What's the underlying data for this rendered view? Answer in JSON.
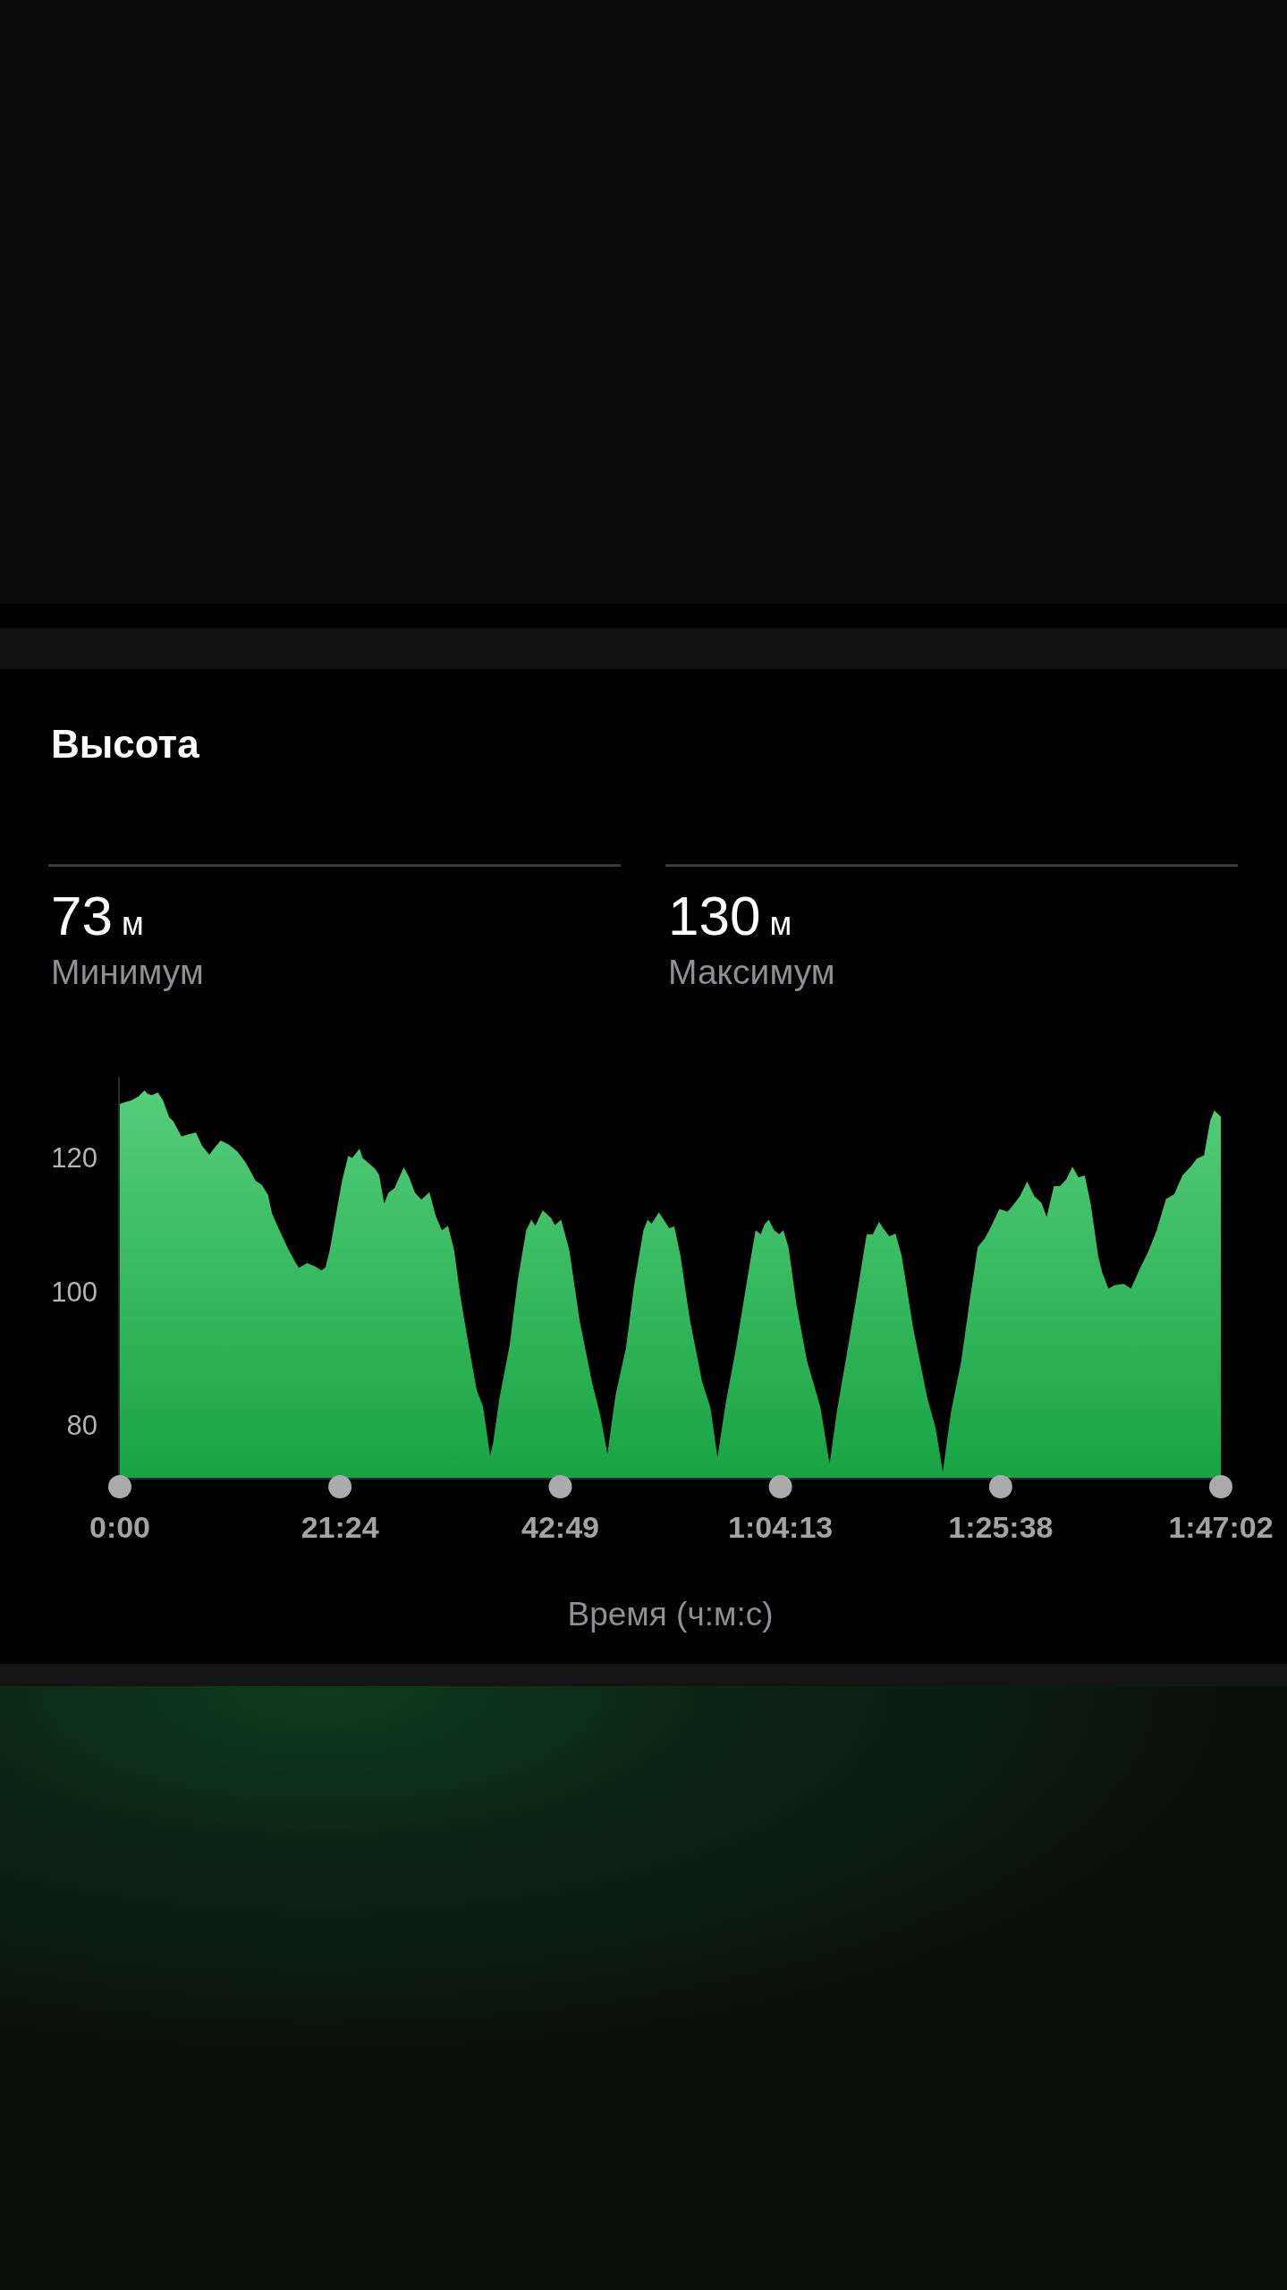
{
  "chart_data": {
    "type": "area",
    "title": "Высота",
    "xlabel": "Время (ч:м:с)",
    "annotations": [
      "73 м",
      "Минимум",
      "130 м",
      "Максимум"
    ],
    "xlim": [
      0,
      107.03
    ],
    "ylim": [
      72,
      132
    ],
    "xticks": [
      {
        "value": 0,
        "label": "0:00"
      },
      {
        "value": 21.4,
        "label": "21:24"
      },
      {
        "value": 42.82,
        "label": "42:49"
      },
      {
        "value": 64.22,
        "label": "1:04:13"
      },
      {
        "value": 85.63,
        "label": "1:25:38"
      },
      {
        "value": 107.03,
        "label": "1:47:02"
      }
    ],
    "yticks": [
      80,
      100,
      120
    ],
    "grid": false,
    "series": [
      {
        "color": "#36b95f",
        "x": [
          0,
          0.6,
          1.1,
          1.8,
          2.4,
          2.7,
          3.1,
          3.7,
          4.2,
          4.8,
          5.2,
          6.0,
          6.6,
          7.4,
          8.0,
          8.7,
          9.2,
          9.8,
          10.6,
          11.4,
          12.2,
          12.6,
          13.2,
          13.8,
          14.4,
          14.8,
          15.6,
          16.4,
          17.0,
          17.4,
          18.2,
          19.0,
          19.6,
          20.0,
          20.4,
          21.0,
          21.6,
          22.2,
          22.6,
          23.0,
          23.3,
          23.6,
          24.2,
          24.8,
          25.2,
          25.7,
          26.1,
          26.7,
          27.1,
          27.6,
          28.1,
          28.7,
          29.3,
          30.1,
          30.7,
          31.3,
          31.9,
          32.5,
          33.1,
          33.9,
          34.7,
          35.3,
          36.0,
          36.3,
          36.9,
          37.9,
          38.7,
          39.5,
          40.0,
          40.4,
          41.1,
          41.9,
          42.3,
          42.9,
          43.7,
          44.7,
          45.9,
          46.7,
          47.4,
          48.2,
          49.2,
          50.0,
          50.9,
          51.3,
          51.7,
          52.4,
          53.0,
          53.4,
          53.9,
          54.5,
          55.4,
          56.6,
          57.4,
          58.1,
          58.9,
          59.9,
          61.1,
          61.8,
          62.3,
          62.7,
          63.1,
          63.6,
          64.1,
          64.5,
          65.0,
          65.8,
          66.8,
          68.1,
          69.0,
          69.7,
          70.7,
          71.8,
          72.6,
          73.2,
          73.8,
          74.2,
          74.8,
          75.4,
          76.0,
          77.1,
          78.5,
          79.3,
          80.0,
          80.8,
          81.8,
          82.6,
          83.4,
          84.1,
          84.7,
          85.5,
          86.3,
          86.7,
          87.5,
          88.2,
          88.9,
          89.6,
          90.1,
          90.8,
          91.4,
          92.0,
          92.6,
          93.2,
          93.8,
          94.4,
          95.1,
          95.5,
          96.1,
          96.7,
          97.6,
          98.3,
          99.2,
          100.0,
          100.8,
          101.7,
          102.5,
          103.3,
          104.1,
          104.7,
          105.4,
          106.0,
          106.4,
          107.03
        ],
        "values": [
          128.0,
          128.3,
          128.5,
          129.1,
          130.0,
          129.5,
          129.3,
          129.7,
          128.5,
          126.0,
          125.4,
          123.1,
          123.4,
          123.7,
          121.7,
          120.4,
          121.4,
          122.5,
          121.9,
          120.9,
          119.3,
          118.2,
          116.5,
          115.9,
          114.4,
          111.6,
          108.8,
          106.2,
          104.5,
          103.5,
          104.2,
          103.7,
          103.1,
          103.6,
          106.1,
          111.3,
          116.5,
          120.2,
          119.9,
          120.7,
          121.3,
          119.9,
          119.1,
          118.3,
          117.4,
          113.1,
          114.7,
          115.4,
          116.8,
          118.5,
          117.1,
          114.7,
          113.7,
          114.8,
          111.3,
          109.1,
          109.8,
          106.1,
          99.3,
          92.0,
          85.2,
          82.8,
          75.4,
          77.5,
          84.0,
          92.0,
          101.8,
          109.1,
          110.7,
          109.8,
          112.1,
          111.0,
          109.9,
          110.7,
          106.1,
          95.6,
          86.4,
          81.5,
          75.7,
          84.6,
          91.5,
          100.9,
          109.1,
          110.7,
          110.1,
          111.8,
          110.4,
          109.4,
          109.7,
          105.3,
          95.9,
          86.5,
          82.7,
          75.2,
          83.3,
          91.5,
          102.8,
          109.1,
          108.5,
          110.1,
          110.7,
          109.1,
          108.5,
          109.1,
          106.6,
          97.8,
          89.6,
          82.7,
          74.2,
          82.0,
          90.9,
          100.9,
          108.5,
          108.5,
          110.4,
          109.4,
          108.2,
          108.6,
          105.3,
          94.7,
          84.0,
          79.6,
          73.0,
          82.0,
          89.6,
          98.4,
          106.6,
          107.9,
          109.7,
          112.3,
          111.9,
          112.6,
          114.2,
          116.4,
          114.2,
          113.2,
          111.1,
          115.7,
          115.7,
          116.7,
          118.6,
          117.0,
          117.3,
          112.9,
          105.3,
          102.8,
          100.4,
          100.9,
          101.1,
          100.4,
          103.5,
          106.0,
          109.1,
          113.8,
          114.5,
          117.3,
          118.6,
          119.8,
          120.3,
          125.5,
          127.0,
          126.1
        ]
      }
    ]
  }
}
